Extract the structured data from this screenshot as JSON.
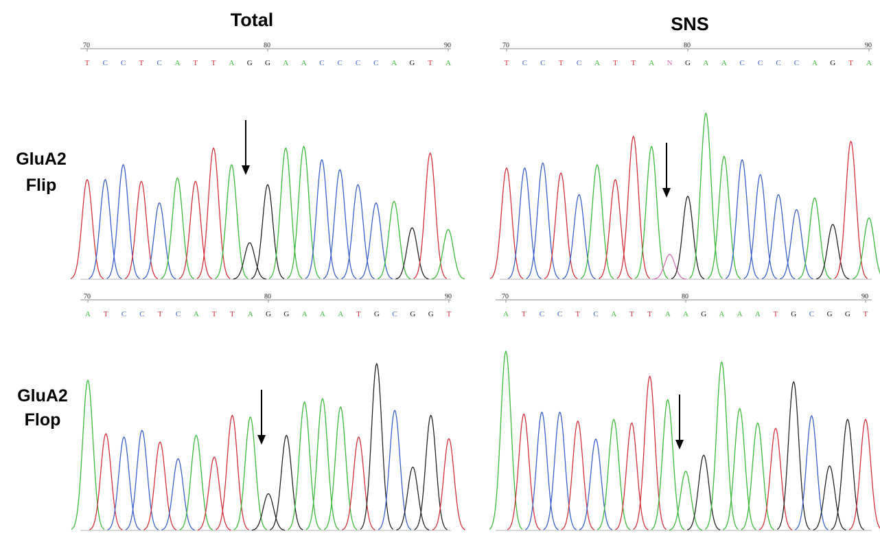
{
  "columns": [
    "Total",
    "SNS"
  ],
  "rows": [
    [
      "GluA2",
      "Flip"
    ],
    [
      "GluA2",
      "Flop"
    ]
  ],
  "panels": [
    {
      "ruler": [
        70,
        80,
        90
      ],
      "bases": [
        "T",
        "C",
        "C",
        "T",
        "C",
        "A",
        "T",
        "T",
        "A",
        "G",
        "G",
        "A",
        "A",
        "C",
        "C",
        "C",
        "C",
        "A",
        "G",
        "T",
        "A"
      ],
      "heights": [
        0.6,
        0.6,
        0.69,
        0.59,
        0.46,
        0.61,
        0.59,
        0.79,
        0.69,
        0.22,
        0.57,
        0.79,
        0.8,
        0.72,
        0.66,
        0.57,
        0.46,
        0.47,
        0.31,
        0.76,
        0.3
      ]
    },
    {
      "ruler": [
        70,
        80,
        90
      ],
      "bases": [
        "T",
        "C",
        "C",
        "T",
        "C",
        "A",
        "T",
        "T",
        "A",
        "N",
        "G",
        "A",
        "A",
        "C",
        "C",
        "C",
        "C",
        "A",
        "G",
        "T",
        "A"
      ],
      "heights": [
        0.67,
        0.67,
        0.7,
        0.64,
        0.51,
        0.69,
        0.6,
        0.86,
        0.8,
        0.15,
        0.5,
        1.0,
        0.74,
        0.72,
        0.63,
        0.51,
        0.42,
        0.49,
        0.33,
        0.83,
        0.37
      ]
    },
    {
      "ruler": [
        70,
        80,
        90
      ],
      "bases": [
        "A",
        "T",
        "C",
        "C",
        "T",
        "C",
        "A",
        "T",
        "T",
        "A",
        "G",
        "G",
        "A",
        "A",
        "A",
        "T",
        "G",
        "C",
        "G",
        "G",
        "T"
      ],
      "heights": [
        0.9,
        0.58,
        0.56,
        0.6,
        0.53,
        0.43,
        0.57,
        0.44,
        0.69,
        0.68,
        0.22,
        0.57,
        0.77,
        0.79,
        0.74,
        0.56,
        1.0,
        0.72,
        0.38,
        0.69,
        0.55
      ]
    },
    {
      "ruler": [
        70,
        80,
        90
      ],
      "bases": [
        "A",
        "T",
        "C",
        "C",
        "T",
        "C",
        "A",
        "T",
        "T",
        "A",
        "A",
        "G",
        "A",
        "A",
        "A",
        "T",
        "G",
        "C",
        "G",
        "G",
        "T"
      ],
      "heights": [
        1.0,
        0.65,
        0.66,
        0.66,
        0.61,
        0.51,
        0.62,
        0.6,
        0.86,
        0.73,
        0.33,
        0.42,
        0.94,
        0.68,
        0.6,
        0.57,
        0.83,
        0.64,
        0.36,
        0.62,
        0.62
      ]
    }
  ]
}
